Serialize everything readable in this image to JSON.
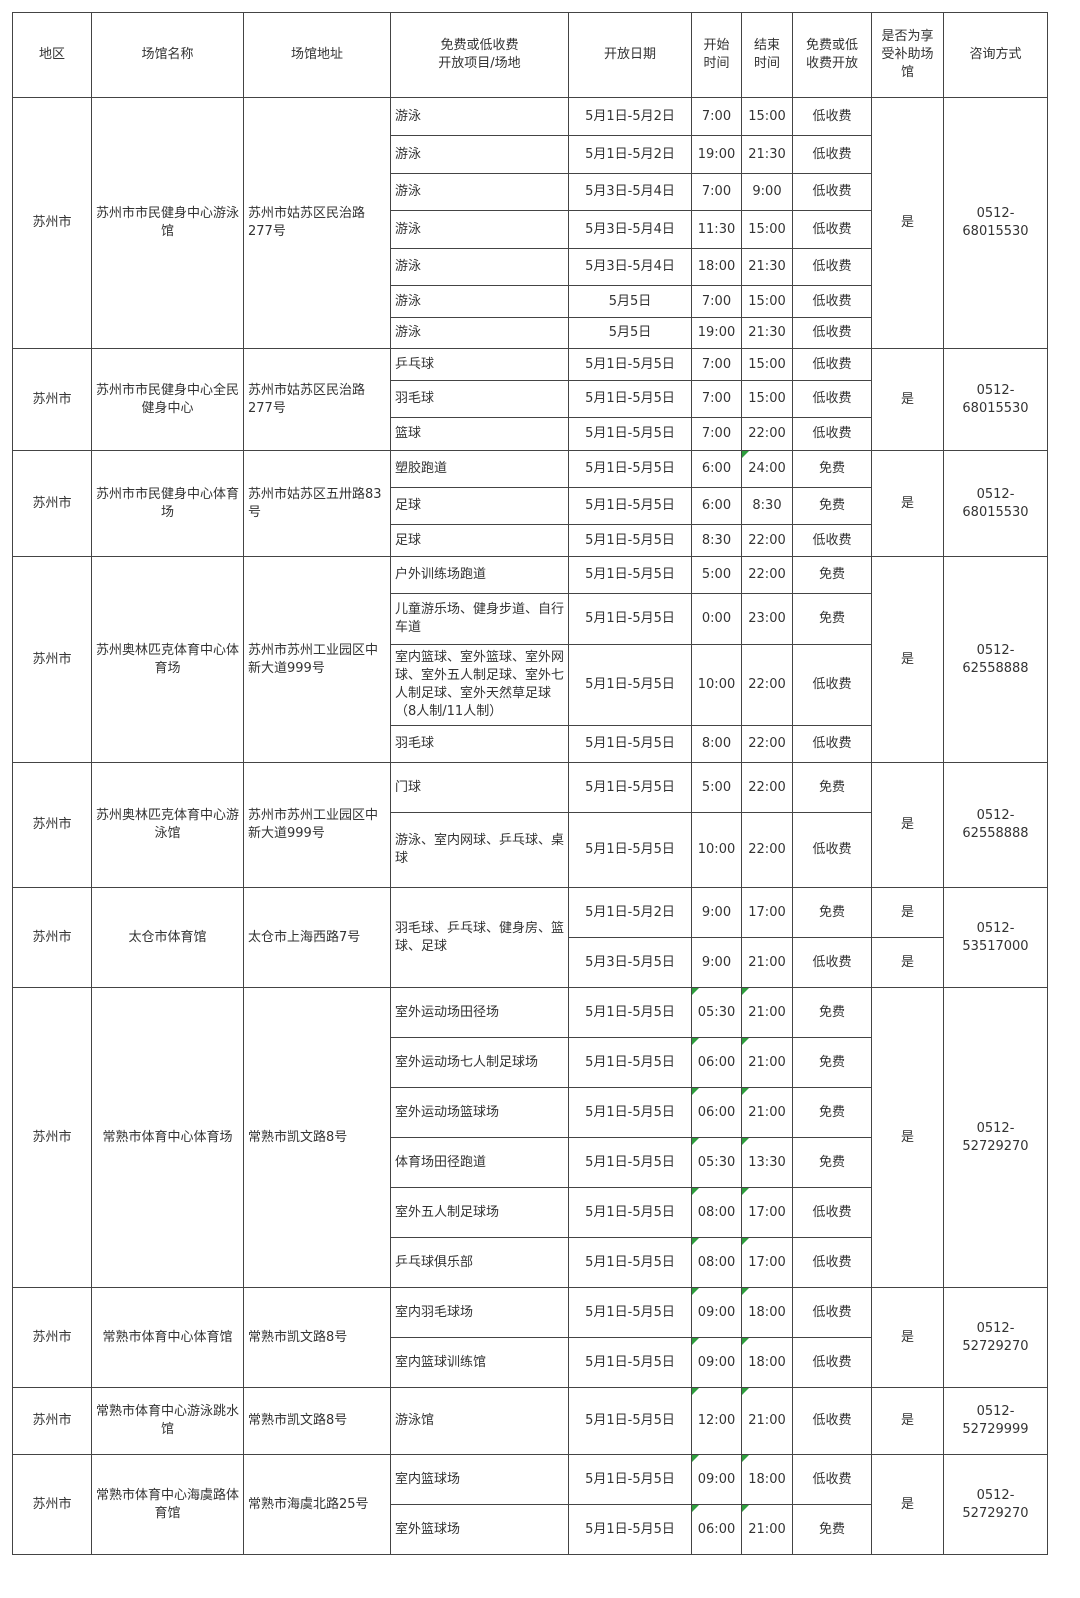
{
  "headers": [
    "地区",
    "场馆名称",
    "场馆地址",
    "免费或低收费\n开放项目/场地",
    "开放日期",
    "开始\n时间",
    "结束\n时间",
    "免费或低\n收费开放",
    "是否为享\n受补助场\n馆",
    "咨询方式"
  ],
  "venues": [
    {
      "region": "苏州市",
      "name": "苏州市市民健身中心游泳馆",
      "address": "苏州市姑苏区民治路277号",
      "subsidized": "是",
      "contact": "0512-68015530",
      "rows": [
        [
          "游泳",
          "5月1日-5月2日",
          "7:00",
          "15:00",
          "低收费"
        ],
        [
          "游泳",
          "5月1日-5月2日",
          "19:00",
          "21:30",
          "低收费"
        ],
        [
          "游泳",
          "5月3日-5月4日",
          "7:00",
          "9:00",
          "低收费"
        ],
        [
          "游泳",
          "5月3日-5月4日",
          "11:30",
          "15:00",
          "低收费"
        ],
        [
          "游泳",
          "5月3日-5月4日",
          "18:00",
          "21:30",
          "低收费"
        ],
        [
          "游泳",
          "5月5日",
          "7:00",
          "15:00",
          "低收费"
        ],
        [
          "游泳",
          "5月5日",
          "19:00",
          "21:30",
          "低收费"
        ]
      ]
    },
    {
      "region": "苏州市",
      "name": "苏州市市民健身中心全民健身中心",
      "address": "苏州市姑苏区民治路277号",
      "subsidized": "是",
      "contact": "0512-68015530",
      "rows": [
        [
          "乒乓球",
          "5月1日-5月5日",
          "7:00",
          "15:00",
          "低收费"
        ],
        [
          "羽毛球",
          "5月1日-5月5日",
          "7:00",
          "15:00",
          "低收费"
        ],
        [
          "篮球",
          "5月1日-5月5日",
          "7:00",
          "22:00",
          "低收费"
        ]
      ]
    },
    {
      "region": "苏州市",
      "name": "苏州市市民健身中心体育场",
      "address": "苏州市姑苏区五卅路83号",
      "subsidized": "是",
      "contact": "0512-68015530",
      "rows": [
        [
          "塑胶跑道",
          "5月1日-5月5日",
          "6:00",
          "24:00",
          "免费"
        ],
        [
          "足球",
          "5月1日-5月5日",
          "6:00",
          "8:30",
          "免费"
        ],
        [
          "足球",
          "5月1日-5月5日",
          "8:30",
          "22:00",
          "低收费"
        ]
      ]
    },
    {
      "region": "苏州市",
      "name": "苏州奥林匹克体育中心体育场",
      "address": "苏州市苏州工业园区中新大道999号",
      "subsidized": "是",
      "contact": "0512-62558888",
      "rows": [
        [
          "户外训练场跑道",
          "5月1日-5月5日",
          "5:00",
          "22:00",
          "免费"
        ],
        [
          "儿童游乐场、健身步道、自行车道",
          "5月1日-5月5日",
          "0:00",
          "23:00",
          "免费"
        ],
        [
          "室内篮球、室外篮球、室外网球、室外五人制足球、室外七人制足球、室外天然草足球 （8人制/11人制）",
          "5月1日-5月5日",
          "10:00",
          "22:00",
          "低收费"
        ],
        [
          "羽毛球",
          "5月1日-5月5日",
          "8:00",
          "22:00",
          "低收费"
        ]
      ]
    },
    {
      "region": "苏州市",
      "name": "苏州奥林匹克体育中心游泳馆",
      "address": "苏州市苏州工业园区中新大道999号",
      "subsidized": "是",
      "contact": "0512-62558888",
      "rows": [
        [
          "门球",
          "5月1日-5月5日",
          "5:00",
          "22:00",
          "免费"
        ],
        [
          "游泳、室内网球、乒乓球、桌球",
          "5月1日-5月5日",
          "10:00",
          "22:00",
          "低收费"
        ]
      ]
    },
    {
      "region": "苏州市",
      "name": "太仓市体育馆",
      "address": "太仓市上海西路7号",
      "contact": "0512-53517000",
      "shared_item": "羽毛球、乒乓球、健身房、篮球、足球",
      "rows": [
        [
          "",
          "5月1日-5月2日",
          "9:00",
          "17:00",
          "免费",
          "是"
        ],
        [
          "",
          "5月3日-5月5日",
          "9:00",
          "21:00",
          "低收费",
          "是"
        ]
      ]
    },
    {
      "region": "苏州市",
      "name": "常熟市体育中心体育场",
      "address": "常熟市凯文路8号",
      "subsidized": "是",
      "contact": "0512-52729270",
      "rows": [
        [
          "室外运动场田径场",
          "5月1日-5月5日",
          "05:30",
          "21:00",
          "免费"
        ],
        [
          "室外运动场七人制足球场",
          "5月1日-5月5日",
          "06:00",
          "21:00",
          "免费"
        ],
        [
          "室外运动场篮球场",
          "5月1日-5月5日",
          "06:00",
          "21:00",
          "免费"
        ],
        [
          "体育场田径跑道",
          "5月1日-5月5日",
          "05:30",
          "13:30",
          "免费"
        ],
        [
          "室外五人制足球场",
          "5月1日-5月5日",
          "08:00",
          "17:00",
          "低收费"
        ],
        [
          "乒乓球俱乐部",
          "5月1日-5月5日",
          "08:00",
          "17:00",
          "低收费"
        ]
      ]
    },
    {
      "region": "苏州市",
      "name": "常熟市体育中心体育馆",
      "address": "常熟市凯文路8号",
      "subsidized": "是",
      "contact": "0512-52729270",
      "rows": [
        [
          "室内羽毛球场",
          "5月1日-5月5日",
          "09:00",
          "18:00",
          "低收费"
        ],
        [
          "室内篮球训练馆",
          "5月1日-5月5日",
          "09:00",
          "18:00",
          "低收费"
        ]
      ]
    },
    {
      "region": "苏州市",
      "name": "常熟市体育中心游泳跳水馆",
      "address": "常熟市凯文路8号",
      "subsidized": "是",
      "contact": "0512-52729999",
      "rows": [
        [
          "游泳馆",
          "5月1日-5月5日",
          "12:00",
          "21:00",
          "低收费"
        ]
      ]
    },
    {
      "region": "苏州市",
      "name": "常熟市体育中心海虞路体育馆",
      "address": "常熟市海虞北路25号",
      "subsidized": "是",
      "contact": "0512-52729270",
      "rows": [
        [
          "室内篮球场",
          "5月1日-5月5日",
          "09:00",
          "18:00",
          "低收费"
        ],
        [
          "室外篮球场",
          "5月1日-5月5日",
          "06:00",
          "21:00",
          "免费"
        ]
      ]
    }
  ]
}
